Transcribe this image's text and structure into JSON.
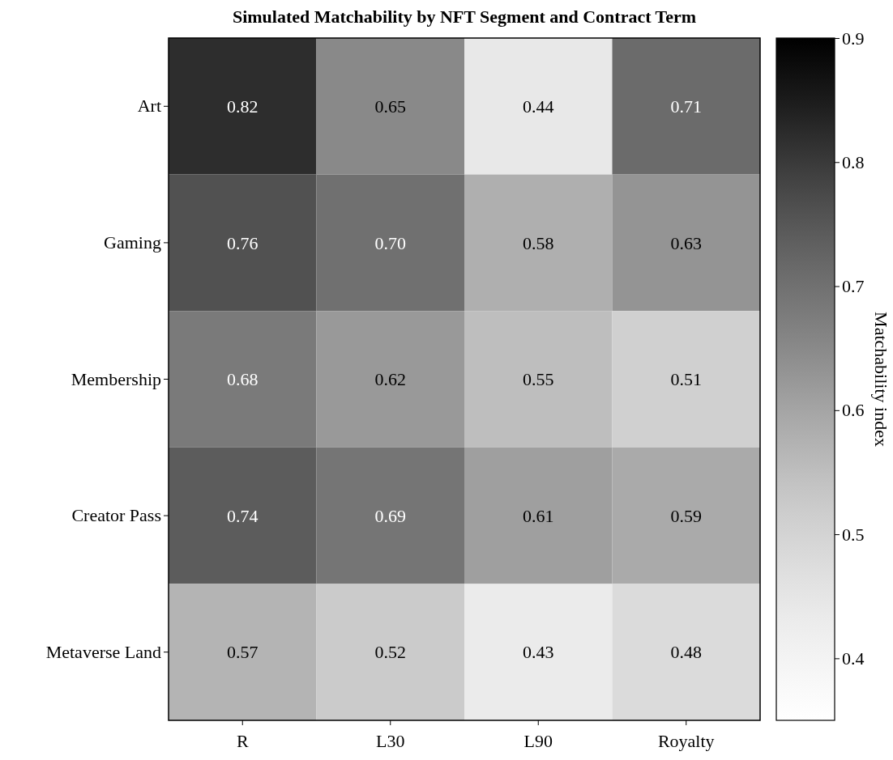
{
  "chart_data": {
    "type": "heatmap",
    "title": "Simulated Matchability by NFT Segment and Contract Term",
    "clabel": "Matchability index",
    "categories": [
      "R",
      "L30",
      "L90",
      "Royalty"
    ],
    "y_categories": [
      "Art",
      "Gaming",
      "Membership",
      "Creator Pass",
      "Metaverse Land"
    ],
    "cells": [
      [
        0.82,
        0.65,
        0.44,
        0.71
      ],
      [
        0.76,
        0.7,
        0.58,
        0.63
      ],
      [
        0.68,
        0.62,
        0.55,
        0.51
      ],
      [
        0.74,
        0.69,
        0.61,
        0.59
      ],
      [
        0.57,
        0.52,
        0.43,
        0.48
      ]
    ],
    "cell_labels": [
      [
        "0.82",
        "0.65",
        "0.44",
        "0.71"
      ],
      [
        "0.76",
        "0.70",
        "0.58",
        "0.63"
      ],
      [
        "0.68",
        "0.62",
        "0.55",
        "0.51"
      ],
      [
        "0.74",
        "0.69",
        "0.61",
        "0.59"
      ],
      [
        "0.57",
        "0.52",
        "0.43",
        "0.48"
      ]
    ],
    "clim": [
      0.35,
      0.9
    ],
    "cticks": [
      0.4,
      0.5,
      0.6,
      0.7,
      0.8,
      0.9
    ]
  }
}
